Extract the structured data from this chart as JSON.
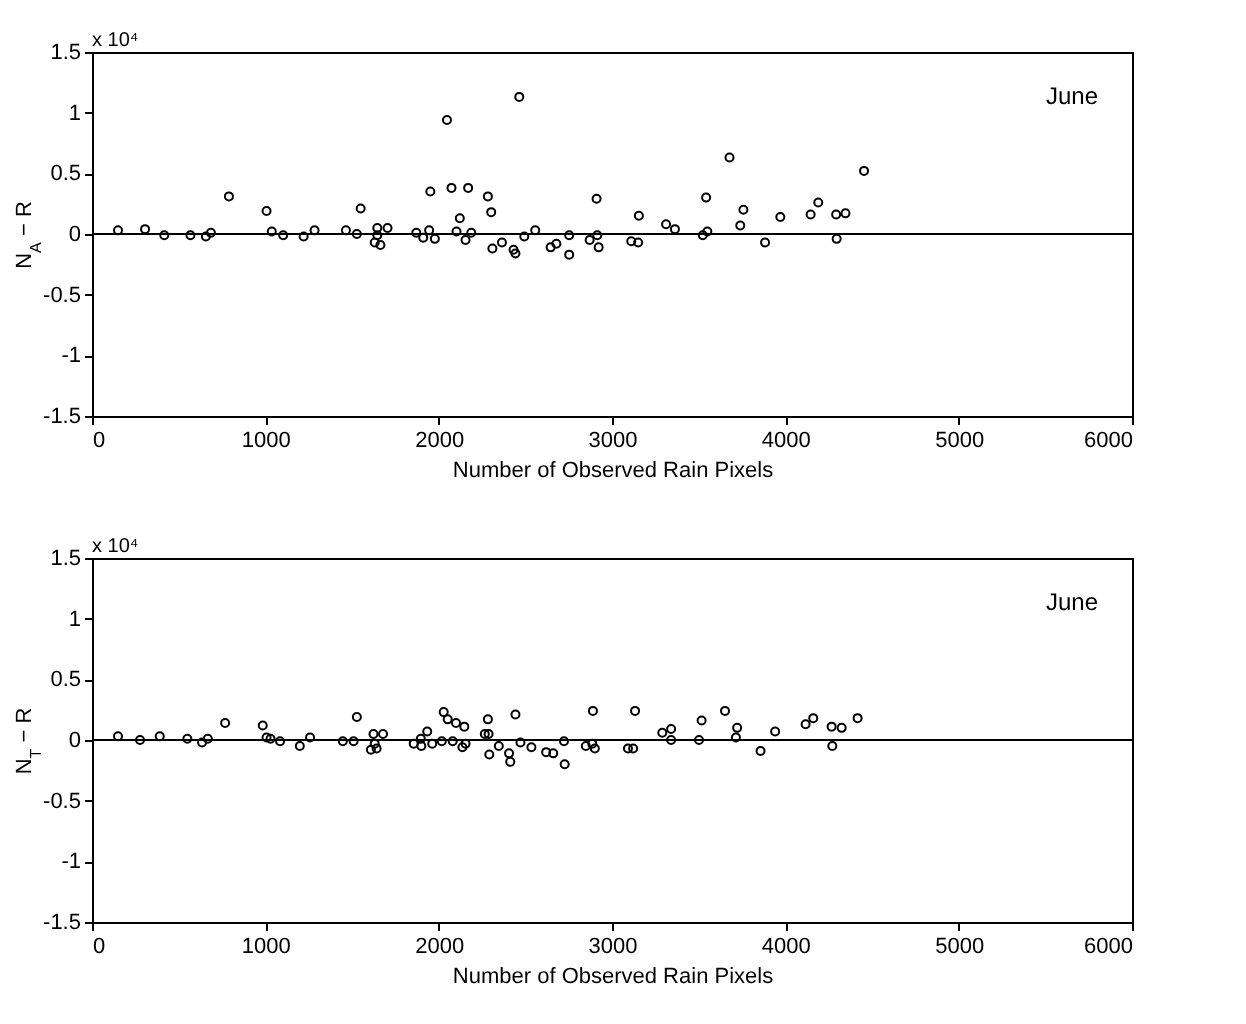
{
  "chart_data": [
    {
      "type": "scatter",
      "xlabel": "Number of Observed Rain Pixels",
      "ylabel": "N$_{A}$ − R",
      "annotations": [
        "June",
        "x 10⁴"
      ],
      "xlim": [
        0,
        6000
      ],
      "xticks": [
        0,
        1000,
        2000,
        3000,
        4000,
        5000,
        6000
      ],
      "ylim": [
        -1.5,
        1.5
      ],
      "yticks": [
        -1.5,
        -1,
        -0.5,
        0,
        0.5,
        1,
        1.5
      ],
      "grid": false,
      "marker": "circle",
      "ref_lines": [
        {
          "axis": "y",
          "value": 0,
          "color": "#000000"
        }
      ],
      "series": [
        {
          "color": "#000000",
          "x": [
            150,
            306,
            417,
            568,
            657,
            686,
            790,
            1007,
            1037,
            1103,
            1221,
            1284,
            1465,
            1528,
            1550,
            1646,
            1646,
            1631,
            1664,
            1705,
            1871,
            1911,
            1945,
            1978,
            1952,
            2048,
            2074,
            2122,
            2103,
            2155,
            2170,
            2188,
            2284,
            2303,
            2310,
            2365,
            2432,
            2443,
            2465,
            2494,
            2557,
            2646,
            2679,
            2753,
            2753,
            2871,
            2911,
            2915,
            2923,
            3111,
            3155,
            3151,
            3312,
            3363,
            3543,
            3524,
            3550,
            3678,
            3758,
            3740,
            3883,
            3971,
            4146,
            4190,
            4293,
            4296,
            4347,
            4454
          ],
          "values": [
            0.03,
            0.04,
            -0.01,
            -0.01,
            -0.02,
            0.01,
            0.31,
            0.19,
            0.02,
            -0.01,
            -0.02,
            0.03,
            0.03,
            0,
            0.21,
            0.05,
            -0.01,
            -0.07,
            -0.09,
            0.05,
            0.01,
            -0.03,
            0.03,
            -0.04,
            0.35,
            0.94,
            0.38,
            0.13,
            0.02,
            -0.05,
            0.38,
            0.01,
            0.31,
            0.18,
            -0.12,
            -0.07,
            -0.13,
            -0.16,
            1.13,
            -0.02,
            0.03,
            -0.11,
            -0.08,
            -0.01,
            -0.17,
            -0.05,
            0.29,
            -0.01,
            -0.11,
            -0.06,
            0.15,
            -0.07,
            0.08,
            0.04,
            0.3,
            -0.01,
            0.02,
            0.63,
            0.2,
            0.07,
            -0.07,
            0.14,
            0.16,
            0.26,
            0.16,
            -0.04,
            0.17,
            0.52
          ]
        }
      ]
    },
    {
      "type": "scatter",
      "xlabel": "Number of Observed Rain Pixels",
      "ylabel": "N$_{T}$ − R",
      "annotations": [
        "June",
        "x 10⁴"
      ],
      "xlim": [
        0,
        6000
      ],
      "xticks": [
        0,
        1000,
        2000,
        3000,
        4000,
        5000,
        6000
      ],
      "ylim": [
        -1.5,
        1.5
      ],
      "yticks": [
        -1.5,
        -1,
        -0.5,
        0,
        0.5,
        1,
        1.5
      ],
      "grid": false,
      "marker": "circle",
      "ref_lines": [
        {
          "axis": "y",
          "value": 0,
          "color": "#000000"
        }
      ],
      "series": [
        {
          "color": "#000000",
          "x": [
            150,
            277,
            391,
            550,
            635,
            668,
            768,
            985,
            1007,
            1030,
            1085,
            1199,
            1258,
            1447,
            1509,
            1528,
            1624,
            1679,
            1631,
            1642,
            1609,
            1856,
            1897,
            1900,
            1934,
            1963,
            2018,
            2029,
            2052,
            2081,
            2100,
            2137,
            2155,
            2148,
            2266,
            2284,
            2288,
            2292,
            2347,
            2406,
            2413,
            2443,
            2472,
            2535,
            2620,
            2661,
            2723,
            2727,
            2849,
            2886,
            2890,
            2901,
            3092,
            3133,
            3122,
            3290,
            3341,
            3341,
            3502,
            3517,
            3652,
            3722,
            3715,
            3857,
            3941,
            4117,
            4161,
            4267,
            4325,
            4271,
            4417
          ],
          "values": [
            0.03,
            0,
            0.03,
            0.01,
            -0.02,
            0.01,
            0.14,
            0.12,
            0.02,
            0.01,
            -0.01,
            -0.05,
            0.02,
            -0.01,
            -0.01,
            0.19,
            0.05,
            0.05,
            -0.03,
            -0.07,
            -0.08,
            -0.03,
            0.01,
            -0.05,
            0.07,
            -0.03,
            -0.01,
            0.23,
            0.17,
            -0.01,
            0.14,
            -0.06,
            -0.03,
            0.11,
            0.05,
            0.17,
            0.05,
            -0.12,
            -0.05,
            -0.11,
            -0.18,
            0.21,
            -0.02,
            -0.06,
            -0.1,
            -0.11,
            -0.01,
            -0.2,
            -0.05,
            -0.03,
            0.24,
            -0.07,
            -0.07,
            0.24,
            -0.07,
            0.06,
            0.09,
            0,
            0,
            0.16,
            0.24,
            0.1,
            0.02,
            -0.09,
            0.07,
            0.13,
            0.18,
            0.11,
            0.1,
            -0.05,
            0.18
          ]
        }
      ]
    }
  ]
}
